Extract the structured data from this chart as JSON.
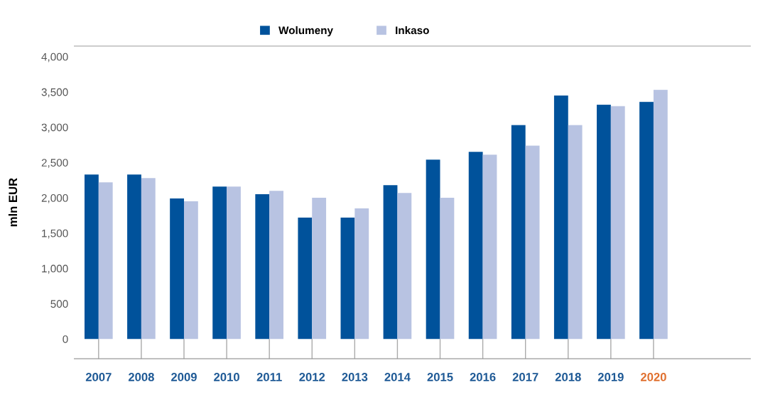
{
  "chart_data": {
    "type": "bar",
    "ylabel": "mln EUR",
    "categories": [
      "2007",
      "2008",
      "2009",
      "2010",
      "2011",
      "2012",
      "2013",
      "2014",
      "2015",
      "2016",
      "2017",
      "2018",
      "2019",
      "2020"
    ],
    "series": [
      {
        "name": "Wolumeny",
        "color": "#00529b",
        "values": [
          2330,
          2330,
          1990,
          2160,
          2050,
          1720,
          1720,
          2180,
          2540,
          2650,
          3030,
          3450,
          3320,
          3360
        ]
      },
      {
        "name": "Inkaso",
        "color": "#b8c3e2",
        "values": [
          2220,
          2280,
          1950,
          2160,
          2100,
          2000,
          1850,
          2070,
          2000,
          2610,
          2740,
          3030,
          3300,
          3530
        ]
      }
    ],
    "ylim": [
      -280,
      4150
    ],
    "yticks": [
      0,
      500,
      {
        "value": 1000,
        "label": "1,000"
      },
      {
        "value": 1500,
        "label": "1,500"
      },
      {
        "value": 2000,
        "label": "2,000"
      },
      {
        "value": 2500,
        "label": "2,500"
      },
      {
        "value": 3000,
        "label": "3,000"
      },
      {
        "value": 3500,
        "label": "3,500"
      },
      {
        "value": 4000,
        "label": "4,000"
      }
    ],
    "grid": false,
    "legend": "top"
  }
}
